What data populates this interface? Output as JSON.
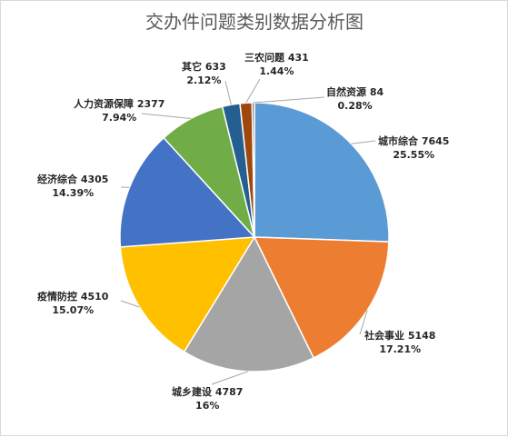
{
  "chart_data": {
    "type": "pie",
    "title": "交办件问题类别数据分析图",
    "start_angle_deg": 0,
    "direction": "clockwise",
    "slices": [
      {
        "name": "城市综合",
        "value": 7645,
        "percent": "25.55%",
        "color": "#5B9BD5"
      },
      {
        "name": "社会事业",
        "value": 5148,
        "percent": "17.21%",
        "color": "#ED7D31"
      },
      {
        "name": "城乡建设",
        "value": 4787,
        "percent": "16%",
        "color": "#A5A5A5"
      },
      {
        "name": "疫情防控",
        "value": 4510,
        "percent": "15.07%",
        "color": "#FFC000"
      },
      {
        "name": "经济综合",
        "value": 4305,
        "percent": "14.39%",
        "color": "#4472C4"
      },
      {
        "name": "人力资源保障",
        "value": 2377,
        "percent": "7.94%",
        "color": "#70AD47"
      },
      {
        "name": "其它",
        "value": 633,
        "percent": "2.12%",
        "color": "#255E91"
      },
      {
        "name": "三农问题",
        "value": 431,
        "percent": "1.44%",
        "color": "#9E480E"
      },
      {
        "name": "自然资源",
        "value": 84,
        "percent": "0.28%",
        "color": "#636363"
      }
    ]
  }
}
